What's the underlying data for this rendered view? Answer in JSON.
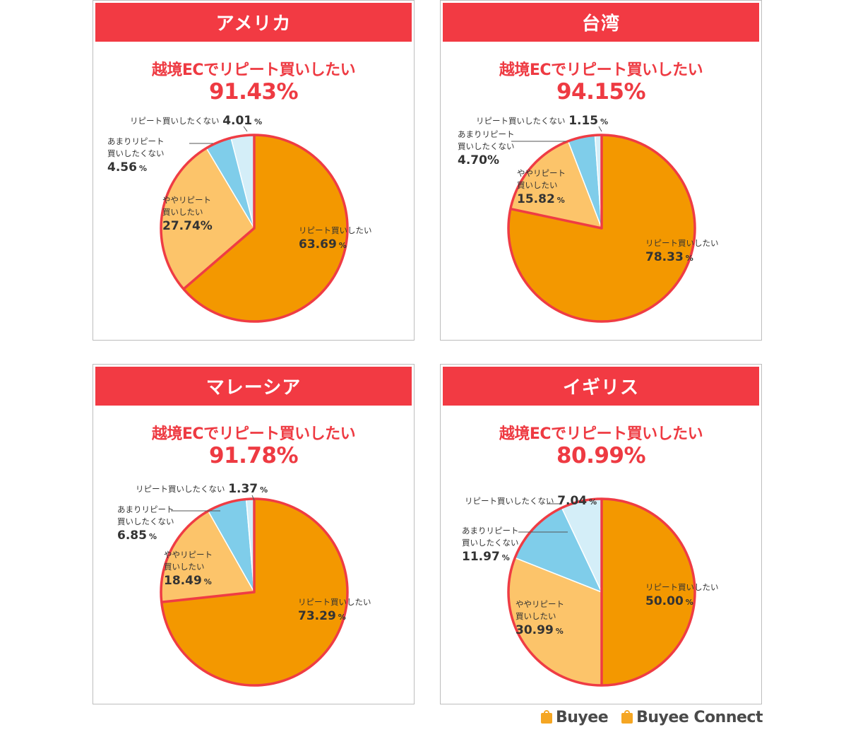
{
  "headline_label": "越境ECでリピート買いしたい",
  "colors": {
    "header": "#f23a43",
    "headline": "#ee3a42",
    "outline": "#ef3c44",
    "repeat": "#f39800",
    "somewhat": "#fcc46a",
    "not_much": "#7fcdea",
    "no": "#d4eef8"
  },
  "panels": [
    {
      "country": "アメリカ",
      "headline_value": "91.43%",
      "chart_data": {
        "type": "pie",
        "title": "アメリカ",
        "slices": [
          {
            "label": "リピート買いしたい",
            "value": 63.69
          },
          {
            "label": "ややリピート買いしたい",
            "value": 27.74
          },
          {
            "label": "あまりリピート買いしたくない",
            "value": 4.56
          },
          {
            "label": "リピート買いしたくない",
            "value": 4.01
          }
        ]
      },
      "labels": [
        {
          "lines": [
            "リピート買いしたい"
          ],
          "value": "63.69",
          "pct": "%"
        },
        {
          "lines": [
            "ややリピート",
            "買いしたい"
          ],
          "value": "27.74%",
          "pct": ""
        },
        {
          "lines": [
            "あまりリピート",
            "買いしたくない"
          ],
          "value": "4.56",
          "pct": "%"
        },
        {
          "lines": [
            "リピート買いしたくない"
          ],
          "value": "4.01",
          "pct": "%"
        }
      ]
    },
    {
      "country": "台湾",
      "headline_value": "94.15%",
      "chart_data": {
        "type": "pie",
        "title": "台湾",
        "slices": [
          {
            "label": "リピート買いしたい",
            "value": 78.33
          },
          {
            "label": "ややリピート買いしたい",
            "value": 15.82
          },
          {
            "label": "あまりリピート買いしたくない",
            "value": 4.7
          },
          {
            "label": "リピート買いしたくない",
            "value": 1.15
          }
        ]
      },
      "labels": [
        {
          "lines": [
            "リピート買いしたい"
          ],
          "value": "78.33",
          "pct": "%"
        },
        {
          "lines": [
            "ややリピート",
            "買いしたい"
          ],
          "value": "15.82",
          "pct": "%"
        },
        {
          "lines": [
            "あまりリピート",
            "買いしたくない"
          ],
          "value": "4.70%",
          "pct": ""
        },
        {
          "lines": [
            "リピート買いしたくない"
          ],
          "value": "1.15",
          "pct": "%"
        }
      ]
    },
    {
      "country": "マレーシア",
      "headline_value": "91.78%",
      "chart_data": {
        "type": "pie",
        "title": "マレーシア",
        "slices": [
          {
            "label": "リピート買いしたい",
            "value": 73.29
          },
          {
            "label": "ややリピート買いしたい",
            "value": 18.49
          },
          {
            "label": "あまりリピート買いしたくない",
            "value": 6.85
          },
          {
            "label": "リピート買いしたくない",
            "value": 1.37
          }
        ]
      },
      "labels": [
        {
          "lines": [
            "リピート買いしたい"
          ],
          "value": "73.29",
          "pct": "%"
        },
        {
          "lines": [
            "ややリピート",
            "買いしたい"
          ],
          "value": "18.49",
          "pct": "%"
        },
        {
          "lines": [
            "あまりリピート",
            "買いしたくない"
          ],
          "value": "6.85",
          "pct": "%"
        },
        {
          "lines": [
            "リピート買いしたくない"
          ],
          "value": "1.37",
          "pct": "%"
        }
      ]
    },
    {
      "country": "イギリス",
      "headline_value": "80.99%",
      "chart_data": {
        "type": "pie",
        "title": "イギリス",
        "slices": [
          {
            "label": "リピート買いしたい",
            "value": 50.0
          },
          {
            "label": "ややリピート買いしたい",
            "value": 30.99
          },
          {
            "label": "あまりリピート買いしたくない",
            "value": 11.97
          },
          {
            "label": "リピート買いしたくない",
            "value": 7.04
          }
        ]
      },
      "labels": [
        {
          "lines": [
            "リピート買いしたい"
          ],
          "value": "50.00",
          "pct": "%"
        },
        {
          "lines": [
            "ややリピート",
            "買いしたい"
          ],
          "value": "30.99",
          "pct": "%"
        },
        {
          "lines": [
            "あまりリピート",
            "買いしたくない"
          ],
          "value": "11.97",
          "pct": "%"
        },
        {
          "lines": [
            "リピート買いしたくない"
          ],
          "value": "7.04",
          "pct": "%"
        }
      ]
    }
  ],
  "logos": [
    {
      "name": "Buyee",
      "text": "Buyee"
    },
    {
      "name": "Buyee Connect",
      "text": "Buyee Connect"
    }
  ]
}
